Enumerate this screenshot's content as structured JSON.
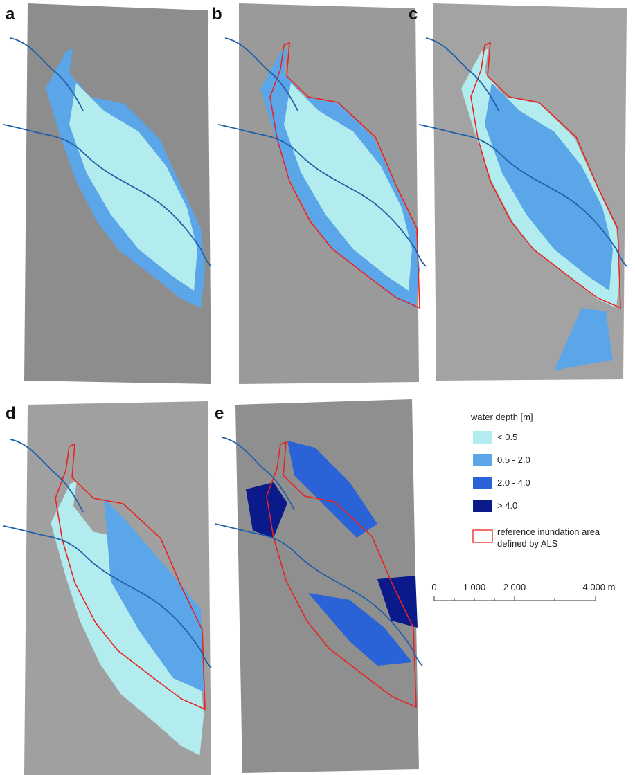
{
  "panels": [
    {
      "label": "a"
    },
    {
      "label": "b"
    },
    {
      "label": "c"
    },
    {
      "label": "d"
    },
    {
      "label": "e"
    }
  ],
  "legend": {
    "title": "water depth [m]",
    "items": [
      {
        "label": "< 0.5",
        "color": "#b3ecef"
      },
      {
        "label": "0.5 - 2.0",
        "color": "#5aa6e8"
      },
      {
        "label": "2.0 - 4.0",
        "color": "#2a62d8"
      },
      {
        "label": "> 4.0",
        "color": "#0a1a8a"
      }
    ],
    "reference": [
      "reference inundation area",
      "defined by ALS"
    ]
  },
  "scale_bar": {
    "labels": [
      "0",
      "1 000",
      "2 000",
      "4 000 m"
    ]
  }
}
